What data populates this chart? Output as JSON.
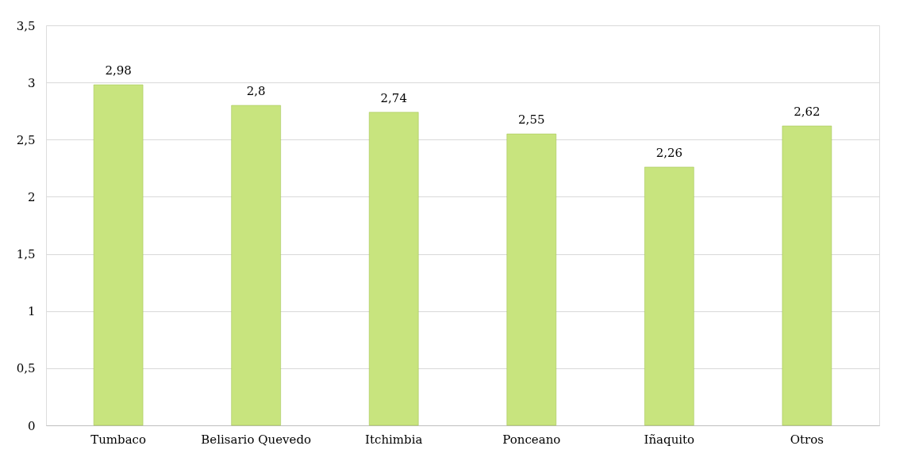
{
  "chart_data": {
    "type": "bar",
    "categories": [
      "Tumbaco",
      "Belisario Quevedo",
      "Itchimbia",
      "Ponceano",
      "Iñaquito",
      "Otros"
    ],
    "values": [
      2.98,
      2.8,
      2.74,
      2.55,
      2.26,
      2.62
    ],
    "value_labels": [
      "2,98",
      "2,8",
      "2,74",
      "2,55",
      "2,26",
      "2,62"
    ],
    "color": "#c8e47e",
    "ylim": [
      0,
      3.5
    ],
    "yticks": [
      0,
      {
        "value": 0.5,
        "label": "0,5"
      },
      1,
      {
        "value": 1.5,
        "label": "1,5"
      },
      2,
      {
        "value": 2.5,
        "label": "2,5"
      },
      3,
      {
        "value": 3.5,
        "label": "3,5"
      }
    ],
    "grid": "y"
  }
}
